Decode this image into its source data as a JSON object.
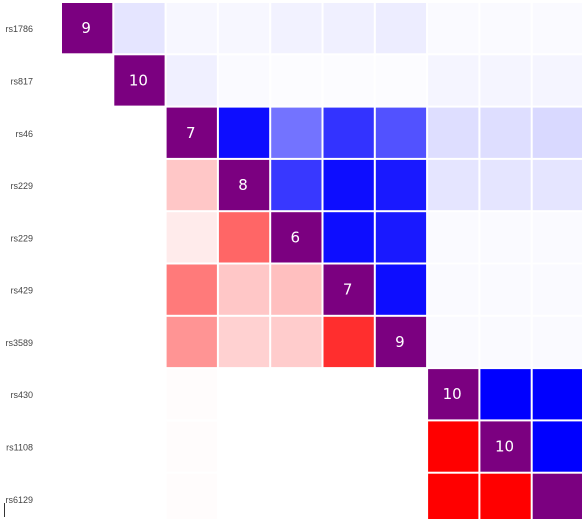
{
  "chart_data": {
    "type": "heatmap",
    "title": "",
    "xlabel": "",
    "ylabel": "",
    "rows": [
      "rs1786",
      "rs817",
      "rs46",
      "rs229",
      "rs229",
      "rs429",
      "rs3589",
      "rs430",
      "rs1108",
      "rs6129"
    ],
    "diagonal_color": "#7b0080",
    "upper_color": "#0000ff",
    "lower_color": "#ff0000",
    "scale": "upper triangle shaded blue, lower triangle shaded red; opacity encodes value (0-1)",
    "cells": [
      {
        "row": 0,
        "col": 0,
        "diag": true,
        "label": "9"
      },
      {
        "row": 0,
        "col": 1,
        "v": 0.1
      },
      {
        "row": 0,
        "col": 2,
        "v": 0.03
      },
      {
        "row": 0,
        "col": 3,
        "v": 0.03
      },
      {
        "row": 0,
        "col": 4,
        "v": 0.05
      },
      {
        "row": 0,
        "col": 5,
        "v": 0.06
      },
      {
        "row": 0,
        "col": 6,
        "v": 0.07
      },
      {
        "row": 0,
        "col": 7,
        "v": 0.02
      },
      {
        "row": 0,
        "col": 8,
        "v": 0.02
      },
      {
        "row": 0,
        "col": 9,
        "v": 0.02
      },
      {
        "row": 1,
        "col": 1,
        "diag": true,
        "label": "10"
      },
      {
        "row": 1,
        "col": 2,
        "v": 0.06
      },
      {
        "row": 1,
        "col": 3,
        "v": 0.02
      },
      {
        "row": 1,
        "col": 4,
        "v": 0.01
      },
      {
        "row": 1,
        "col": 5,
        "v": 0.01
      },
      {
        "row": 1,
        "col": 6,
        "v": 0.01
      },
      {
        "row": 1,
        "col": 7,
        "v": 0.04
      },
      {
        "row": 1,
        "col": 8,
        "v": 0.04
      },
      {
        "row": 1,
        "col": 9,
        "v": 0.04
      },
      {
        "row": 2,
        "col": 2,
        "diag": true,
        "label": "7"
      },
      {
        "row": 2,
        "col": 3,
        "v": 0.95
      },
      {
        "row": 2,
        "col": 4,
        "v": 0.55
      },
      {
        "row": 2,
        "col": 5,
        "v": 0.8
      },
      {
        "row": 2,
        "col": 6,
        "v": 0.68
      },
      {
        "row": 2,
        "col": 7,
        "v": 0.13
      },
      {
        "row": 2,
        "col": 8,
        "v": 0.13
      },
      {
        "row": 2,
        "col": 9,
        "v": 0.15
      },
      {
        "row": 3,
        "col": 2,
        "v": 0.22
      },
      {
        "row": 3,
        "col": 3,
        "diag": true,
        "label": "8"
      },
      {
        "row": 3,
        "col": 4,
        "v": 0.78
      },
      {
        "row": 3,
        "col": 5,
        "v": 0.95
      },
      {
        "row": 3,
        "col": 6,
        "v": 0.9
      },
      {
        "row": 3,
        "col": 7,
        "v": 0.1
      },
      {
        "row": 3,
        "col": 8,
        "v": 0.1
      },
      {
        "row": 3,
        "col": 9,
        "v": 0.1
      },
      {
        "row": 4,
        "col": 2,
        "v": 0.08
      },
      {
        "row": 4,
        "col": 3,
        "v": 0.6
      },
      {
        "row": 4,
        "col": 4,
        "diag": true,
        "label": "6"
      },
      {
        "row": 4,
        "col": 5,
        "v": 0.95
      },
      {
        "row": 4,
        "col": 6,
        "v": 0.9
      },
      {
        "row": 4,
        "col": 7,
        "v": 0.02
      },
      {
        "row": 4,
        "col": 8,
        "v": 0.02
      },
      {
        "row": 4,
        "col": 9,
        "v": 0.02
      },
      {
        "row": 5,
        "col": 2,
        "v": 0.52
      },
      {
        "row": 5,
        "col": 3,
        "v": 0.22
      },
      {
        "row": 5,
        "col": 4,
        "v": 0.25
      },
      {
        "row": 5,
        "col": 5,
        "diag": true,
        "label": "7"
      },
      {
        "row": 5,
        "col": 6,
        "v": 0.95
      },
      {
        "row": 5,
        "col": 7,
        "v": 0.02
      },
      {
        "row": 5,
        "col": 8,
        "v": 0.02
      },
      {
        "row": 5,
        "col": 9,
        "v": 0.02
      },
      {
        "row": 6,
        "col": 2,
        "v": 0.42
      },
      {
        "row": 6,
        "col": 3,
        "v": 0.18
      },
      {
        "row": 6,
        "col": 4,
        "v": 0.2
      },
      {
        "row": 6,
        "col": 5,
        "v": 0.82
      },
      {
        "row": 6,
        "col": 6,
        "diag": true,
        "label": "9"
      },
      {
        "row": 6,
        "col": 7,
        "v": 0.02
      },
      {
        "row": 6,
        "col": 8,
        "v": 0.02
      },
      {
        "row": 6,
        "col": 9,
        "v": 0.02
      },
      {
        "row": 7,
        "col": 2,
        "v": 0.01
      },
      {
        "row": 7,
        "col": 7,
        "diag": true,
        "label": "10"
      },
      {
        "row": 7,
        "col": 8,
        "v": 1.0
      },
      {
        "row": 7,
        "col": 9,
        "v": 1.0
      },
      {
        "row": 8,
        "col": 2,
        "v": 0.01
      },
      {
        "row": 8,
        "col": 7,
        "v": 1.0
      },
      {
        "row": 8,
        "col": 8,
        "diag": true,
        "label": "10"
      },
      {
        "row": 8,
        "col": 9,
        "v": 1.0
      },
      {
        "row": 9,
        "col": 2,
        "v": 0.01
      },
      {
        "row": 9,
        "col": 7,
        "v": 1.0
      },
      {
        "row": 9,
        "col": 8,
        "v": 1.0
      },
      {
        "row": 9,
        "col": 9,
        "diag": true,
        "label": ""
      }
    ]
  }
}
